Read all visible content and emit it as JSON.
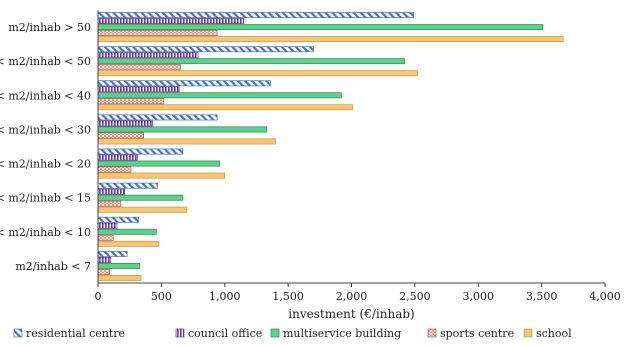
{
  "chart_data": {
    "type": "bar",
    "orientation": "horizontal",
    "title": "",
    "xlabel": "investment (€/inhab)",
    "ylabel": "",
    "xlim": [
      0,
      4000
    ],
    "xticks": [
      0,
      500,
      1000,
      1500,
      2000,
      2500,
      3000,
      3500,
      4000
    ],
    "xtick_labels": [
      "0",
      "500",
      "1,000",
      "1,500",
      "2,000",
      "2,500",
      "3,000",
      "3,500",
      "4,000"
    ],
    "grid": false,
    "legend_position": "bottom",
    "categories": [
      "m2/inhab > 50",
      "< m2/inhab < 50",
      "< m2/inhab < 40",
      "< m2/inhab < 30",
      "< m2/inhab < 20",
      "< m2/inhab < 15",
      "< m2/inhab < 10",
      "m2/inhab < 7"
    ],
    "series": [
      {
        "name": "residential centre",
        "values": [
          2490,
          1700,
          1360,
          940,
          670,
          470,
          320,
          230
        ],
        "color": "#4472c4",
        "pattern": "hatch-diagonal"
      },
      {
        "name": "council office",
        "values": [
          1150,
          790,
          640,
          430,
          310,
          210,
          150,
          100
        ],
        "color": "#7030a0",
        "pattern": "vertical-stripes"
      },
      {
        "name": "multiservice building",
        "values": [
          3510,
          2420,
          1920,
          1330,
          960,
          670,
          460,
          330
        ],
        "color": "#5fcf8a",
        "pattern": "solid"
      },
      {
        "name": "sports centre",
        "values": [
          940,
          650,
          520,
          360,
          260,
          180,
          120,
          90
        ],
        "color": "#e07060",
        "pattern": "dots"
      },
      {
        "name": "school",
        "values": [
          3670,
          2520,
          2010,
          1400,
          1000,
          700,
          480,
          340
        ],
        "color": "#f5c676",
        "pattern": "solid"
      }
    ]
  }
}
